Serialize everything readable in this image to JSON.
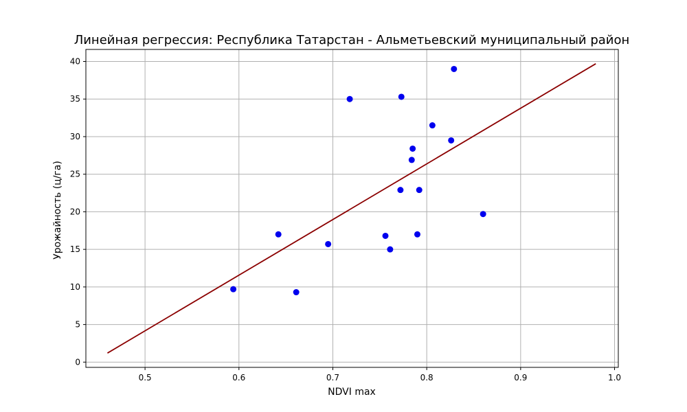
{
  "chart_data": {
    "type": "scatter",
    "title": "Линейная регрессия: Республика Татарстан - Альметьевский муниципальный район",
    "xlabel": "NDVI max",
    "ylabel": "Урожайность (ц/га)",
    "xlim": [
      0.437,
      1.004
    ],
    "ylim": [
      -0.7,
      41.6
    ],
    "xticks": [
      0.5,
      0.6,
      0.7,
      0.8,
      0.9,
      1.0
    ],
    "xtick_labels": [
      "0.5",
      "0.6",
      "0.7",
      "0.8",
      "0.9",
      "1.0"
    ],
    "yticks": [
      0,
      5,
      10,
      15,
      20,
      25,
      30,
      35,
      40
    ],
    "ytick_labels": [
      "0",
      "5",
      "10",
      "15",
      "20",
      "25",
      "30",
      "35",
      "40"
    ],
    "grid": true,
    "points": [
      {
        "x": 0.594,
        "y": 9.7
      },
      {
        "x": 0.642,
        "y": 17.0
      },
      {
        "x": 0.661,
        "y": 9.3
      },
      {
        "x": 0.695,
        "y": 15.7
      },
      {
        "x": 0.718,
        "y": 35.0
      },
      {
        "x": 0.756,
        "y": 16.8
      },
      {
        "x": 0.761,
        "y": 15.0
      },
      {
        "x": 0.772,
        "y": 22.9
      },
      {
        "x": 0.773,
        "y": 35.3
      },
      {
        "x": 0.784,
        "y": 26.9
      },
      {
        "x": 0.785,
        "y": 28.4
      },
      {
        "x": 0.79,
        "y": 17.0
      },
      {
        "x": 0.792,
        "y": 22.9
      },
      {
        "x": 0.806,
        "y": 31.5
      },
      {
        "x": 0.826,
        "y": 29.5
      },
      {
        "x": 0.829,
        "y": 39.0
      },
      {
        "x": 0.86,
        "y": 19.7
      }
    ],
    "regression_line": {
      "x": [
        0.46,
        0.98
      ],
      "y": [
        1.2,
        39.7
      ]
    },
    "colors": {
      "points": "#0000ee",
      "line": "#8b0000",
      "grid": "#b0b0b0"
    }
  }
}
